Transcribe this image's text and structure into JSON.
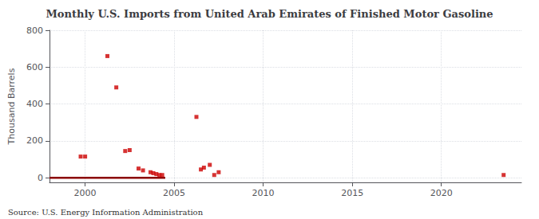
{
  "chart_data": {
    "type": "scatter",
    "title": "Monthly U.S. Imports from United Arab Emirates of Finished Motor Gasoline",
    "ylabel": "Thousand Barrels",
    "annotations": [
      "Source: U.S. Energy Information Administration"
    ],
    "xlim": [
      1998.0,
      2024.5
    ],
    "ylim": [
      -25,
      800
    ],
    "xticks": [
      2000,
      2005,
      2010,
      2015,
      2020
    ],
    "yticks": [
      0,
      200,
      400,
      600,
      800
    ],
    "grid": true,
    "series": [
      {
        "type": "scatter",
        "color": "#cc0000",
        "marker": "square",
        "x": [
          1999.75,
          2000.0,
          2001.25,
          2001.75,
          2002.25,
          2002.5,
          2003.0,
          2003.25,
          2003.67,
          2003.83,
          2004.0,
          2004.17,
          2004.33,
          2006.25,
          2006.5,
          2006.67,
          2007.0,
          2007.25,
          2007.5,
          2023.5
        ],
        "values": [
          115,
          115,
          660,
          490,
          145,
          150,
          50,
          40,
          30,
          25,
          20,
          15,
          15,
          330,
          45,
          55,
          70,
          15,
          30,
          15
        ]
      },
      {
        "type": "line",
        "color": "#8b0000",
        "line_style": "solid",
        "x": [
          1998.0,
          2004.5
        ],
        "values": [
          0,
          0
        ]
      }
    ]
  }
}
